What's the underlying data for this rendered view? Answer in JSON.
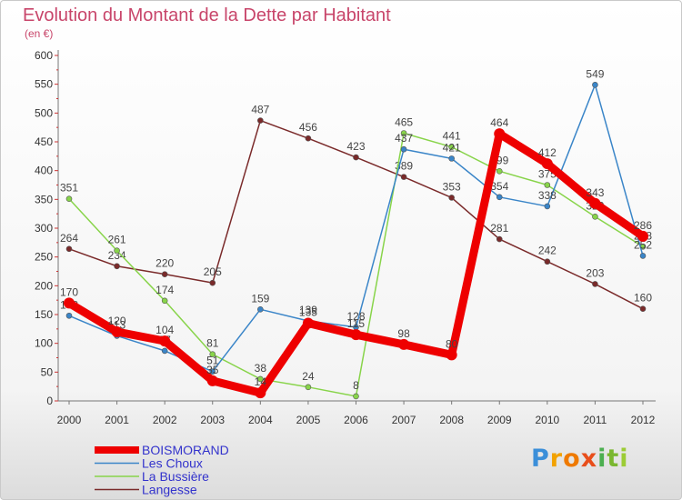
{
  "title": "Evolution du Montant de la Dette par Habitant",
  "unit_label": "(en €)",
  "logo": {
    "text": "Proxiti"
  },
  "chart_data": {
    "type": "line",
    "x": [
      "2000",
      "2001",
      "2002",
      "2003",
      "2004",
      "2005",
      "2006",
      "2007",
      "2008",
      "2009",
      "2010",
      "2011",
      "2012"
    ],
    "ylim": [
      0,
      600
    ],
    "yticks": [
      0,
      50,
      100,
      150,
      200,
      250,
      300,
      350,
      400,
      450,
      500,
      550,
      600
    ],
    "grid": false,
    "legend_position": "bottom-left",
    "series": [
      {
        "name": "Langesse",
        "color": "#7a2a2a",
        "values": [
          264,
          234,
          220,
          205,
          487,
          456,
          423,
          389,
          353,
          281,
          242,
          203,
          160
        ],
        "labels": [
          "264",
          "234",
          "220",
          "205",
          "487",
          "456",
          "423",
          "389",
          "353",
          "281",
          "242",
          "203",
          "160"
        ]
      },
      {
        "name": "La Bussière",
        "color": "#88d44a",
        "values": [
          351,
          261,
          174,
          81,
          38,
          24,
          8,
          465,
          441,
          399,
          375,
          320,
          268
        ],
        "labels": [
          "351",
          "261",
          "174",
          "81",
          "38",
          "24",
          "8",
          "465",
          "441",
          "399",
          "375",
          "320",
          "268"
        ]
      },
      {
        "name": "Les Choux",
        "color": "#3a85c8",
        "values": [
          148,
          113,
          87,
          51,
          159,
          139,
          128,
          437,
          421,
          354,
          338,
          549,
          252
        ],
        "labels": [
          "148",
          "113",
          "87",
          "51",
          "159",
          "139",
          "128",
          "437",
          "421",
          "354",
          "338",
          "549",
          "252"
        ]
      },
      {
        "name": "BOISMORAND",
        "color": "#ee0000",
        "values": [
          170,
          120,
          104,
          35,
          14,
          135,
          115,
          98,
          80,
          464,
          412,
          343,
          286
        ],
        "labels": [
          "170",
          "120",
          "104",
          "35",
          "14",
          "135",
          "115",
          "98",
          "80",
          "464",
          "412",
          "343",
          "286"
        ]
      }
    ]
  }
}
